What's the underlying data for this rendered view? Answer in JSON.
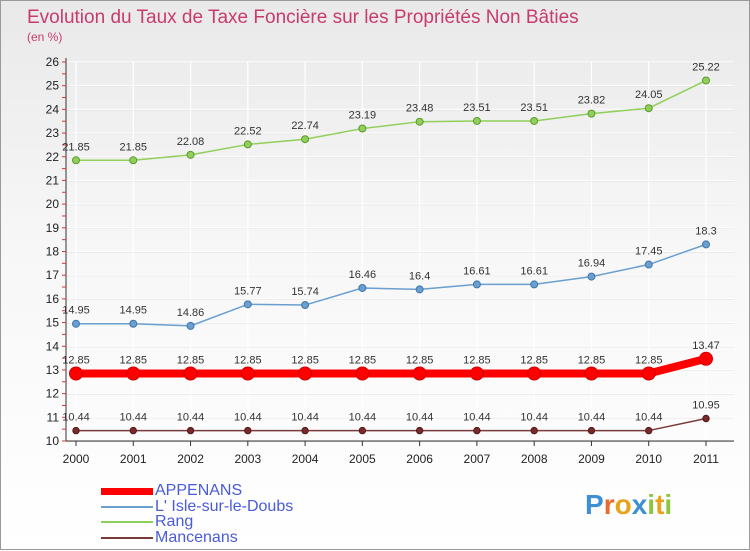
{
  "title": "Evolution du Taux de Taxe Foncière sur les Propriétés Non Bâties",
  "subtitle": "(en %)",
  "logo": {
    "letters": [
      "P",
      "r",
      "o",
      "x",
      "i",
      "t",
      "i"
    ],
    "colors": [
      "#3d8fd6",
      "#e86b2d",
      "#e8a21c",
      "#3d8fd6",
      "#8cc63f",
      "#e8a21c",
      "#8cc63f"
    ]
  },
  "chart_data": {
    "type": "line",
    "title": "Evolution du Taux de Taxe Foncière sur les Propriétés Non Bâties",
    "ylabel": "(en %)",
    "xlabel": "",
    "x": [
      "2000",
      "2001",
      "2002",
      "2003",
      "2004",
      "2005",
      "2006",
      "2007",
      "2008",
      "2009",
      "2010",
      "2011"
    ],
    "ylim": [
      10,
      26
    ],
    "yticks": [
      "10",
      "11",
      "12",
      "13",
      "14",
      "15",
      "16",
      "17",
      "18",
      "19",
      "20",
      "21",
      "22",
      "23",
      "24",
      "25",
      "26"
    ],
    "grid": true,
    "legend_position": "bottom-left",
    "series": [
      {
        "name": "APPENANS",
        "color": "#ff0000",
        "values": [
          12.85,
          12.85,
          12.85,
          12.85,
          12.85,
          12.85,
          12.85,
          12.85,
          12.85,
          12.85,
          12.85,
          13.47
        ],
        "labels": [
          "12.85",
          "12.85",
          "12.85",
          "12.85",
          "12.85",
          "12.85",
          "12.85",
          "12.85",
          "12.85",
          "12.85",
          "12.85",
          "13.47"
        ]
      },
      {
        "name": "L' Isle-sur-le-Doubs",
        "color": "#6a9fcf",
        "values": [
          14.95,
          14.95,
          14.86,
          15.77,
          15.74,
          16.46,
          16.4,
          16.61,
          16.61,
          16.94,
          17.45,
          18.3
        ],
        "labels": [
          "14.95",
          "14.95",
          "14.86",
          "15.77",
          "15.74",
          "16.46",
          "16.4",
          "16.61",
          "16.61",
          "16.94",
          "17.45",
          "18.3"
        ]
      },
      {
        "name": "Rang",
        "color": "#8fcf5a",
        "values": [
          21.85,
          21.85,
          22.08,
          22.52,
          22.74,
          23.19,
          23.48,
          23.51,
          23.51,
          23.82,
          24.05,
          25.22
        ],
        "labels": [
          "21.85",
          "21.85",
          "22.08",
          "22.52",
          "22.74",
          "23.19",
          "23.48",
          "23.51",
          "23.51",
          "23.82",
          "24.05",
          "25.22"
        ]
      },
      {
        "name": "Mancenans",
        "color": "#7a3a3a",
        "values": [
          10.44,
          10.44,
          10.44,
          10.44,
          10.44,
          10.44,
          10.44,
          10.44,
          10.44,
          10.44,
          10.44,
          10.95
        ],
        "labels": [
          "10.44",
          "10.44",
          "10.44",
          "10.44",
          "10.44",
          "10.44",
          "10.44",
          "10.44",
          "10.44",
          "10.44",
          "10.44",
          "10.95"
        ]
      }
    ]
  }
}
